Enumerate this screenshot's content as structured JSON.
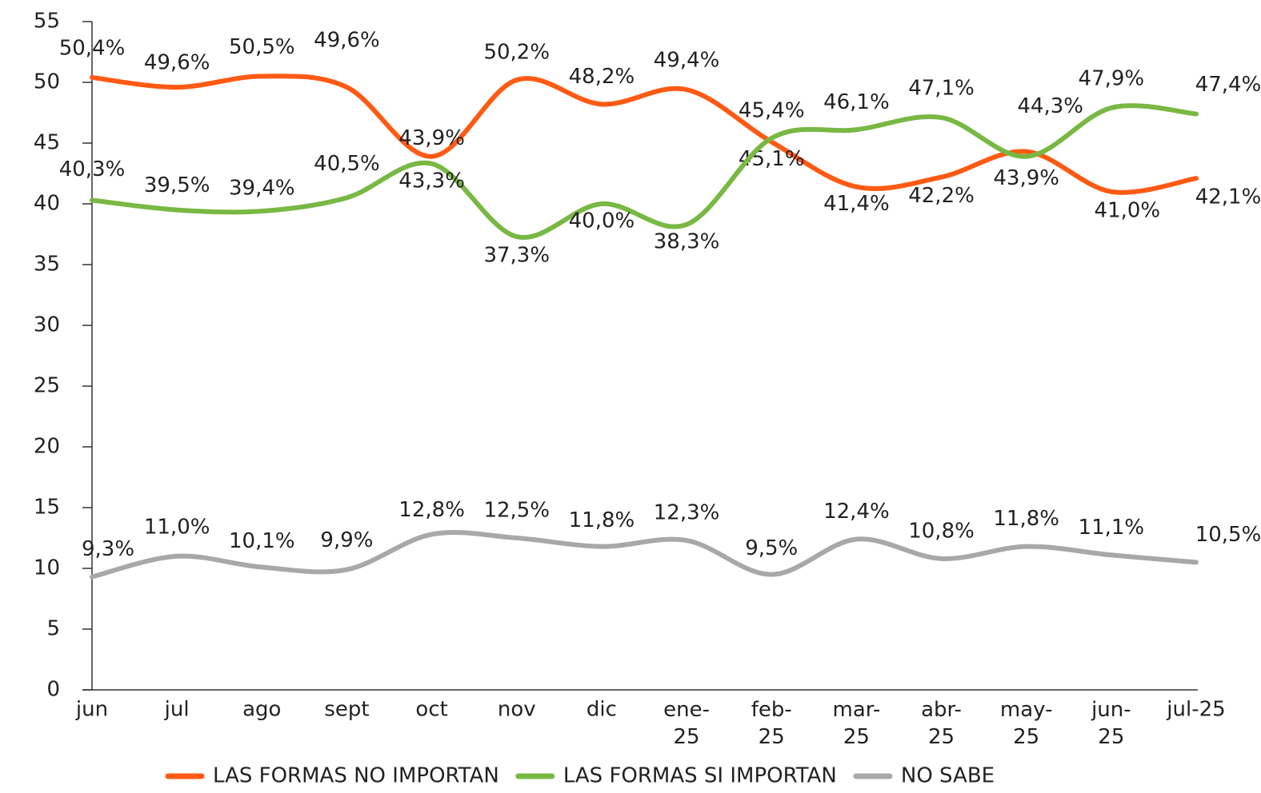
{
  "chart_data": {
    "type": "line",
    "categories": [
      "jun",
      "jul",
      "ago",
      "sept",
      "oct",
      "nov",
      "dic",
      "ene-25",
      "feb-25",
      "mar-25",
      "abr-25",
      "may-25",
      "jun-25",
      "jul-25"
    ],
    "ylim": [
      0,
      55
    ],
    "yticks": [
      0,
      5,
      10,
      15,
      20,
      25,
      30,
      35,
      40,
      45,
      50,
      55
    ],
    "grid": false,
    "legend": "bottom",
    "series": [
      {
        "name": "LAS FORMAS NO IMPORTAN",
        "color": "#ff5a14",
        "values": [
          50.4,
          49.6,
          50.5,
          49.6,
          43.9,
          50.2,
          48.2,
          49.4,
          45.1,
          41.4,
          42.2,
          44.3,
          41.0,
          42.1
        ],
        "value_labels": [
          "50,4%",
          "49,6%",
          "50,5%",
          "49,6%",
          "43,9%",
          "50,2%",
          "48,2%",
          "49,4%",
          "45,1%",
          "41,4%",
          "42,2%",
          "44,3%",
          "41,0%",
          "42,1%"
        ]
      },
      {
        "name": "LAS FORMAS SI IMPORTAN",
        "color": "#78b843",
        "values": [
          40.3,
          39.5,
          39.4,
          40.5,
          43.3,
          37.3,
          40.0,
          38.3,
          45.4,
          46.1,
          47.1,
          43.9,
          47.9,
          47.4
        ],
        "value_labels": [
          "40,3%",
          "39,5%",
          "39,4%",
          "40,5%",
          "43,3%",
          "37,3%",
          "40,0%",
          "38,3%",
          "45,4%",
          "46,1%",
          "47,1%",
          "43,9%",
          "47,9%",
          "47,4%"
        ]
      },
      {
        "name": "NO SABE",
        "color": "#a8a8a8",
        "values": [
          9.3,
          11.0,
          10.1,
          9.9,
          12.8,
          12.5,
          11.8,
          12.3,
          9.5,
          12.4,
          10.8,
          11.8,
          11.1,
          10.5
        ],
        "value_labels": [
          "9,3%",
          "11,0%",
          "10,1%",
          "9,9%",
          "12,8%",
          "12,5%",
          "11,8%",
          "12,3%",
          "9,5%",
          "12,4%",
          "10,8%",
          "11,8%",
          "11,1%",
          "10,5%"
        ]
      }
    ]
  }
}
